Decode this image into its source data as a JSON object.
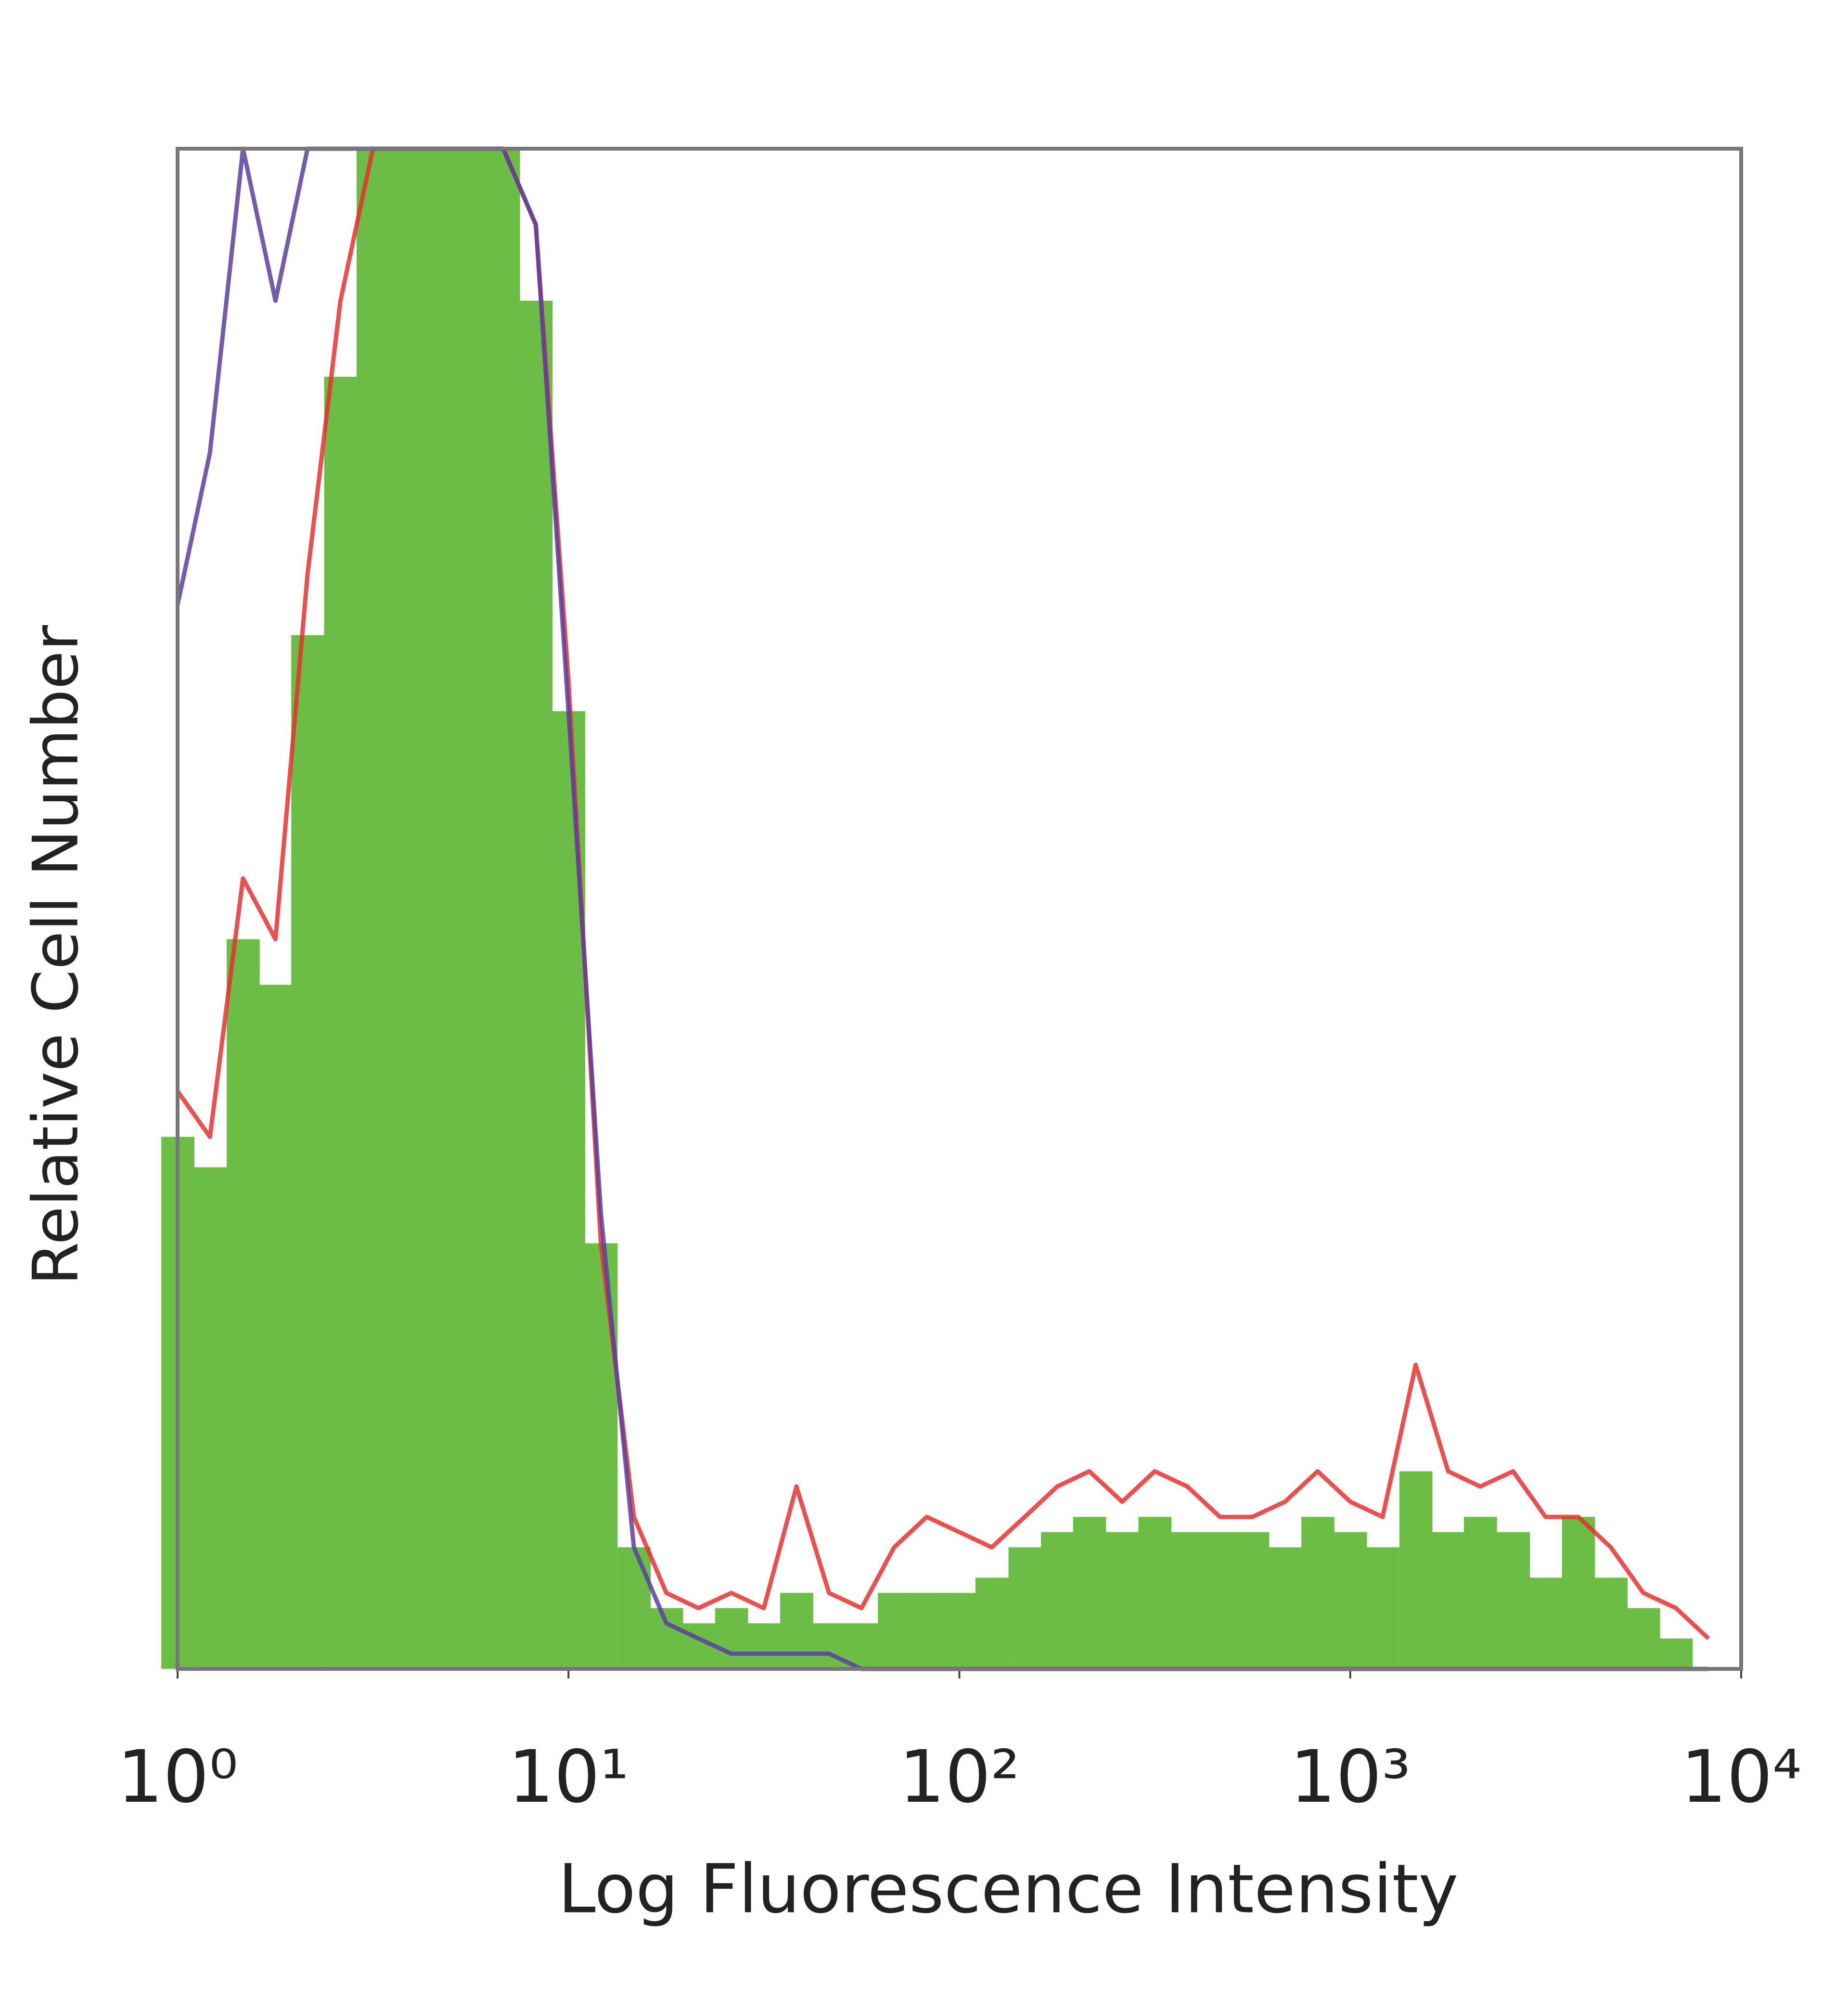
{
  "chart_data": {
    "type": "line",
    "x_label": "Log Fluorescence Intensity",
    "y_label": "Relative Cell Number",
    "xscale": "log",
    "xlim": [
      1,
      10000
    ],
    "xticks": [
      {
        "value": 1,
        "label": "10⁰"
      },
      {
        "value": 10,
        "label": "10¹"
      },
      {
        "value": 100,
        "label": "10²"
      },
      {
        "value": 1000,
        "label": "10³"
      },
      {
        "value": 10000,
        "label": "10⁴"
      }
    ],
    "ylim": [
      0,
      100
    ],
    "x": [
      1,
      1.21,
      1.47,
      1.78,
      2.15,
      2.61,
      3.16,
      3.83,
      4.64,
      5.62,
      6.81,
      8.25,
      10,
      12.1,
      14.7,
      17.8,
      21.5,
      26.1,
      31.6,
      38.3,
      46.4,
      56.2,
      68.1,
      82.5,
      100,
      121,
      147,
      178,
      215,
      261,
      316,
      383,
      464,
      562,
      681,
      825,
      1000,
      1210,
      1470,
      1780,
      2150,
      2610,
      3160,
      3830,
      4640,
      5620,
      6810,
      8250
    ],
    "series": [
      {
        "color": "#6bbd45",
        "fill": true,
        "values": [
          35,
          33,
          48,
          45,
          68,
          85,
          100,
          100,
          100,
          100,
          100,
          90,
          63,
          28,
          8,
          4,
          3,
          4,
          3,
          5,
          3,
          3,
          5,
          5,
          5,
          6,
          8,
          9,
          10,
          9,
          10,
          9,
          9,
          9,
          8,
          10,
          9,
          8,
          13,
          9,
          10,
          9,
          6,
          10,
          6,
          4,
          2,
          0
        ]
      },
      {
        "color": "#e8312f",
        "fill": false,
        "values": [
          38,
          35,
          52,
          48,
          72,
          90,
          100,
          100,
          100,
          100,
          100,
          95,
          65,
          28,
          10,
          5,
          4,
          5,
          4,
          12,
          5,
          4,
          8,
          10,
          9,
          8,
          10,
          12,
          13,
          11,
          13,
          12,
          10,
          10,
          11,
          13,
          11,
          10,
          20,
          13,
          12,
          13,
          10,
          10,
          8,
          5,
          4,
          2
        ]
      },
      {
        "color": "#5a3fa0",
        "fill": false,
        "values": [
          70,
          80,
          100,
          90,
          100,
          100,
          100,
          100,
          100,
          100,
          100,
          95,
          63,
          30,
          8,
          3,
          2,
          1,
          1,
          1,
          1,
          0,
          0,
          0,
          0,
          0,
          0,
          0,
          0,
          0,
          0,
          0,
          0,
          0,
          0,
          0,
          0,
          0,
          0,
          0,
          0,
          0,
          0,
          0,
          0,
          0,
          0,
          0
        ]
      }
    ]
  }
}
